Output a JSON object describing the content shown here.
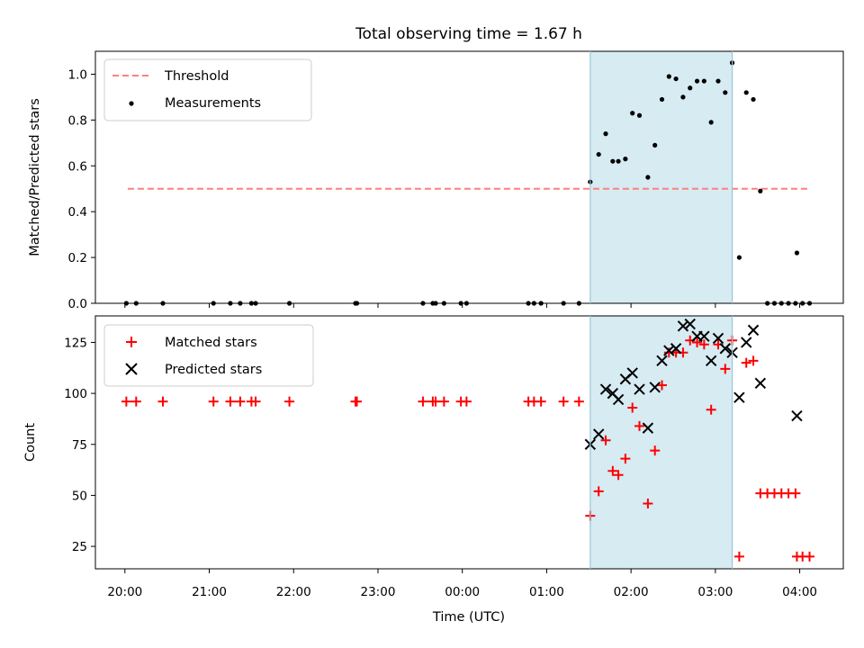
{
  "chart_data": {
    "title": "Total observing time = 1.67 h",
    "xlabel": "Time (UTC)",
    "x_unit": "UTC time (HH:MM), axis spans the evening of one day into the next",
    "x_ticks": [
      "20:00",
      "21:00",
      "22:00",
      "23:00",
      "00:00",
      "01:00",
      "02:00",
      "03:00",
      "04:00"
    ],
    "xlim": [
      "19:39",
      "04:31"
    ],
    "highlight_span": {
      "from": "01:31",
      "to": "03:12",
      "color": "#add8e6"
    },
    "panels": [
      {
        "type": "scatter",
        "ylabel": "Matched/Predicted stars",
        "ylim": [
          0,
          1.1
        ],
        "y_ticks": [
          "0.0",
          "0.2",
          "0.4",
          "0.6",
          "0.8",
          "1.0"
        ],
        "legend": {
          "position": "upper-left",
          "entries": [
            "Threshold",
            "Measurements"
          ]
        },
        "threshold": {
          "name": "Threshold",
          "value": 0.5,
          "x_from": "20:02",
          "x_to": "04:07",
          "color": "#ff7f7f",
          "style": "dashed"
        },
        "series": [
          {
            "name": "Measurements",
            "color": "#000000",
            "marker": "dot",
            "points": [
              [
                "20:01",
                0
              ],
              [
                "20:08",
                0
              ],
              [
                "20:27",
                0
              ],
              [
                "21:03",
                0
              ],
              [
                "21:15",
                0
              ],
              [
                "21:22",
                0
              ],
              [
                "21:30",
                0
              ],
              [
                "21:33",
                0
              ],
              [
                "21:57",
                0
              ],
              [
                "22:44",
                0
              ],
              [
                "22:45",
                0
              ],
              [
                "23:32",
                0
              ],
              [
                "23:39",
                0
              ],
              [
                "23:41",
                0
              ],
              [
                "23:47",
                0
              ],
              [
                "23:59",
                0
              ],
              [
                "00:03",
                0
              ],
              [
                "00:47",
                0
              ],
              [
                "00:51",
                0
              ],
              [
                "00:56",
                0
              ],
              [
                "01:12",
                0
              ],
              [
                "01:23",
                0
              ],
              [
                "01:31",
                0.53
              ],
              [
                "01:37",
                0.65
              ],
              [
                "01:42",
                0.74
              ],
              [
                "01:47",
                0.62
              ],
              [
                "01:51",
                0.62
              ],
              [
                "01:56",
                0.63
              ],
              [
                "02:01",
                0.83
              ],
              [
                "02:06",
                0.82
              ],
              [
                "02:12",
                0.55
              ],
              [
                "02:17",
                0.69
              ],
              [
                "02:22",
                0.89
              ],
              [
                "02:27",
                0.99
              ],
              [
                "02:32",
                0.98
              ],
              [
                "02:37",
                0.9
              ],
              [
                "02:42",
                0.94
              ],
              [
                "02:47",
                0.97
              ],
              [
                "02:52",
                0.97
              ],
              [
                "02:57",
                0.79
              ],
              [
                "03:02",
                0.97
              ],
              [
                "03:07",
                0.92
              ],
              [
                "03:12",
                1.05
              ],
              [
                "03:17",
                0.2
              ],
              [
                "03:22",
                0.92
              ],
              [
                "03:27",
                0.89
              ],
              [
                "03:32",
                0.49
              ],
              [
                "03:37",
                0
              ],
              [
                "03:42",
                0
              ],
              [
                "03:47",
                0
              ],
              [
                "03:52",
                0
              ],
              [
                "03:57",
                0
              ],
              [
                "03:58",
                0.22
              ],
              [
                "04:02",
                0
              ],
              [
                "04:07",
                0
              ]
            ]
          }
        ]
      },
      {
        "type": "scatter",
        "ylabel": "Count",
        "ylim": [
          14,
          138
        ],
        "y_ticks": [
          "25",
          "50",
          "75",
          "100",
          "125"
        ],
        "legend": {
          "position": "upper-left",
          "entries": [
            "Matched stars",
            "Predicted stars"
          ]
        },
        "series": [
          {
            "name": "Matched stars",
            "color": "#ff0000",
            "marker": "plus",
            "points": [
              [
                "20:01",
                96
              ],
              [
                "20:08",
                96
              ],
              [
                "20:27",
                96
              ],
              [
                "21:03",
                96
              ],
              [
                "21:15",
                96
              ],
              [
                "21:22",
                96
              ],
              [
                "21:30",
                96
              ],
              [
                "21:33",
                96
              ],
              [
                "21:57",
                96
              ],
              [
                "22:44",
                96
              ],
              [
                "22:45",
                96
              ],
              [
                "23:32",
                96
              ],
              [
                "23:39",
                96
              ],
              [
                "23:41",
                96
              ],
              [
                "23:47",
                96
              ],
              [
                "23:59",
                96
              ],
              [
                "00:03",
                96
              ],
              [
                "00:47",
                96
              ],
              [
                "00:51",
                96
              ],
              [
                "00:56",
                96
              ],
              [
                "01:12",
                96
              ],
              [
                "01:23",
                96
              ],
              [
                "01:31",
                40
              ],
              [
                "01:37",
                52
              ],
              [
                "01:42",
                77
              ],
              [
                "01:47",
                62
              ],
              [
                "01:51",
                60
              ],
              [
                "01:56",
                68
              ],
              [
                "02:01",
                93
              ],
              [
                "02:06",
                84
              ],
              [
                "02:12",
                46
              ],
              [
                "02:17",
                72
              ],
              [
                "02:22",
                104
              ],
              [
                "02:27",
                120
              ],
              [
                "02:32",
                120
              ],
              [
                "02:37",
                120
              ],
              [
                "02:42",
                126
              ],
              [
                "02:47",
                125
              ],
              [
                "02:52",
                124
              ],
              [
                "02:57",
                92
              ],
              [
                "03:02",
                124
              ],
              [
                "03:07",
                112
              ],
              [
                "03:12",
                126
              ],
              [
                "03:17",
                20
              ],
              [
                "03:22",
                115
              ],
              [
                "03:27",
                116
              ],
              [
                "03:32",
                51
              ],
              [
                "03:37",
                51
              ],
              [
                "03:42",
                51
              ],
              [
                "03:47",
                51
              ],
              [
                "03:52",
                51
              ],
              [
                "03:57",
                51
              ],
              [
                "03:58",
                20
              ],
              [
                "04:02",
                20
              ],
              [
                "04:07",
                20
              ]
            ]
          },
          {
            "name": "Predicted stars",
            "color": "#000000",
            "marker": "x",
            "points": [
              [
                "01:31",
                75
              ],
              [
                "01:37",
                80
              ],
              [
                "01:42",
                102
              ],
              [
                "01:47",
                100
              ],
              [
                "01:51",
                97
              ],
              [
                "01:56",
                107
              ],
              [
                "02:01",
                110
              ],
              [
                "02:06",
                102
              ],
              [
                "02:12",
                83
              ],
              [
                "02:17",
                103
              ],
              [
                "02:22",
                116
              ],
              [
                "02:27",
                121
              ],
              [
                "02:32",
                122
              ],
              [
                "02:37",
                133
              ],
              [
                "02:42",
                134
              ],
              [
                "02:47",
                128
              ],
              [
                "02:52",
                128
              ],
              [
                "02:57",
                116
              ],
              [
                "03:02",
                127
              ],
              [
                "03:07",
                122
              ],
              [
                "03:12",
                120
              ],
              [
                "03:17",
                98
              ],
              [
                "03:22",
                125
              ],
              [
                "03:27",
                131
              ],
              [
                "03:32",
                105
              ],
              [
                "03:58",
                89
              ]
            ]
          }
        ]
      }
    ]
  }
}
